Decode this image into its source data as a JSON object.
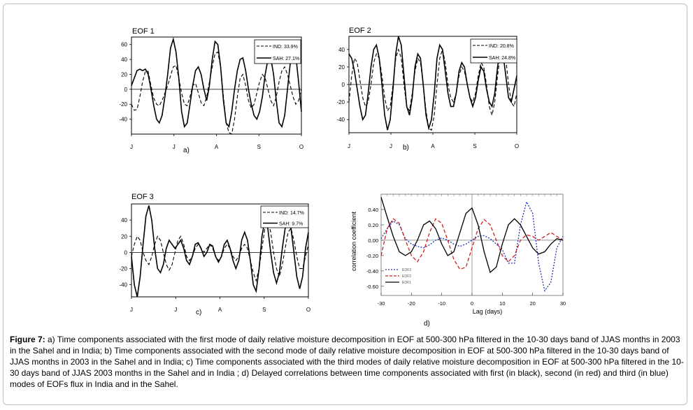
{
  "figure": {
    "caption_label": "Figure 7:",
    "caption_text": " a) Time components associated with the first mode of daily relative moisture decomposition in EOF at 500-300 hPa filtered in the 10-30 days band of JJAS months in 2003 in the Sahel and in India; b) Time components associated with the second mode of daily relative moisture decomposition in EOF at 500-300 hPa filtered in the 10-30 days band of JJAS months in 2003 in the Sahel and in India; c) Time components associated with the third modes of daily relative moisture decomposition in EOF at 500-300 hPa filtered in the 10-30 days band of JJAS 2003 months in the Sahel and in India ; d) Delayed correlations between time components associated with first (in black), second (in red) and third (in blue) modes of EOFs flux in India and in the Sahel."
  },
  "chart_data": [
    {
      "type": "line",
      "panel": "a)",
      "title": "EOF 1",
      "x_ticks": [
        "J",
        "J",
        "A",
        "S",
        "O"
      ],
      "y_ticks": [
        "60",
        "40",
        "20",
        "0",
        "-20",
        "-40"
      ],
      "ylim": [
        -60,
        70
      ],
      "legend": [
        "IND: 33.9%",
        "SAH: 27.1%"
      ],
      "series": [
        {
          "name": "IND: 33.9%",
          "style": "dashed",
          "values": [
            -20,
            -28,
            -27,
            -10,
            10,
            24,
            24,
            5,
            -12,
            -20,
            -22,
            -15,
            -5,
            5,
            18,
            30,
            32,
            15,
            -5,
            -20,
            -22,
            -10,
            5,
            8,
            -5,
            -18,
            -22,
            -10,
            10,
            30,
            48,
            50,
            30,
            -10,
            -45,
            -58,
            -60,
            -40,
            -10,
            15,
            20,
            5,
            -15,
            -25,
            -20,
            -5,
            10,
            20,
            15,
            0,
            -15,
            -22,
            -10,
            10,
            25,
            30,
            20,
            5,
            -10,
            -20,
            -15,
            0
          ]
        },
        {
          "name": "SAH: 27.1%",
          "style": "solid",
          "values": [
            5,
            15,
            25,
            27,
            25,
            27,
            20,
            0,
            -22,
            -40,
            -45,
            -35,
            -10,
            20,
            55,
            67,
            50,
            15,
            -30,
            -50,
            -45,
            -20,
            5,
            25,
            30,
            20,
            0,
            -15,
            5,
            40,
            64,
            60,
            30,
            -15,
            -45,
            -50,
            -30,
            0,
            25,
            40,
            42,
            25,
            0,
            -20,
            -35,
            -40,
            -30,
            -10,
            20,
            40,
            42,
            20,
            -15,
            -45,
            -50,
            -35,
            0,
            35,
            48,
            45,
            10,
            -30
          ]
        }
      ]
    },
    {
      "type": "line",
      "panel": "b)",
      "title": "EOF 2",
      "x_ticks": [
        "J",
        "J",
        "A",
        "S",
        "O"
      ],
      "y_ticks": [
        "40",
        "20",
        "0",
        "-20",
        "-40"
      ],
      "ylim": [
        -55,
        55
      ],
      "legend": [
        "IND: 20.8%",
        "SAH: 24.8%"
      ],
      "series": [
        {
          "name": "IND: 20.8%",
          "style": "dashed",
          "values": [
            -20,
            10,
            30,
            25,
            5,
            -15,
            -25,
            -20,
            0,
            25,
            35,
            30,
            10,
            -15,
            -30,
            -25,
            0,
            30,
            40,
            30,
            0,
            -25,
            -30,
            -10,
            15,
            30,
            25,
            0,
            -30,
            -50,
            -52,
            -35,
            0,
            30,
            40,
            25,
            0,
            -15,
            -20,
            -10,
            10,
            20,
            15,
            0,
            -15,
            -20,
            -10,
            10,
            25,
            20,
            0,
            -25,
            -35,
            -20,
            10,
            35,
            45,
            30,
            0,
            -20,
            -25,
            -10
          ]
        },
        {
          "name": "SAH: 24.8%",
          "style": "solid",
          "values": [
            35,
            30,
            15,
            -5,
            -25,
            -40,
            -35,
            -10,
            20,
            40,
            45,
            30,
            0,
            -35,
            -52,
            -40,
            -5,
            35,
            55,
            45,
            10,
            -25,
            -35,
            -15,
            20,
            35,
            30,
            0,
            -35,
            -50,
            -40,
            -10,
            30,
            45,
            40,
            15,
            -10,
            -25,
            -25,
            -10,
            15,
            25,
            20,
            0,
            -15,
            -25,
            -15,
            5,
            20,
            15,
            -5,
            -20,
            -25,
            -10,
            20,
            40,
            35,
            10,
            -15,
            -20,
            -5,
            10
          ]
        }
      ]
    },
    {
      "type": "line",
      "panel": "c)",
      "title": "EOF 3",
      "x_ticks": [
        "J",
        "J",
        "A",
        "S",
        "O"
      ],
      "y_ticks": [
        "40",
        "20",
        "0",
        "-20",
        "-40"
      ],
      "ylim": [
        -55,
        60
      ],
      "legend": [
        "IND: 14.7%",
        "SAH: 9.7%"
      ],
      "series": [
        {
          "name": "IND: 14.7%",
          "style": "dashed",
          "values": [
            -5,
            10,
            20,
            15,
            0,
            -10,
            -15,
            -5,
            10,
            20,
            15,
            0,
            -15,
            -22,
            -15,
            0,
            15,
            20,
            10,
            -5,
            -10,
            -5,
            5,
            10,
            5,
            0,
            5,
            10,
            5,
            -5,
            -10,
            -5,
            5,
            10,
            5,
            -5,
            -10,
            -5,
            5,
            10,
            5,
            -10,
            -25,
            -35,
            -20,
            5,
            30,
            40,
            25,
            0,
            -20,
            -30,
            -15,
            5,
            25,
            30,
            15,
            -5,
            -20,
            -20,
            -5,
            10
          ]
        },
        {
          "name": "SAH: 9.7%",
          "style": "solid",
          "values": [
            -5,
            -40,
            -55,
            -30,
            10,
            45,
            58,
            40,
            5,
            -20,
            -25,
            -15,
            5,
            15,
            10,
            5,
            10,
            15,
            5,
            -10,
            -15,
            -5,
            10,
            12,
            5,
            -5,
            0,
            10,
            8,
            -5,
            -12,
            -5,
            10,
            15,
            5,
            -10,
            -20,
            -10,
            15,
            25,
            15,
            -10,
            -40,
            -48,
            -20,
            20,
            40,
            30,
            0,
            -25,
            -38,
            -25,
            5,
            30,
            45,
            30,
            0,
            -30,
            -45,
            -30,
            5,
            25
          ]
        }
      ]
    },
    {
      "type": "line",
      "panel": "d)",
      "title": "",
      "xlabel": "Lag (days)",
      "ylabel": "correlation coefficient",
      "x_ticks": [
        "-30",
        "-20",
        "-10",
        "0",
        "10",
        "20",
        "30"
      ],
      "y_ticks": [
        "0.40",
        "0.20",
        "0.00",
        "-0.20",
        "-0.40",
        "-0.60"
      ],
      "xlim": [
        -30,
        30
      ],
      "ylim": [
        -0.72,
        0.6
      ],
      "legend": [
        "EOF3",
        "EOF2",
        "EOF1"
      ],
      "lags": [
        -30,
        -28,
        -26,
        -24,
        -22,
        -20,
        -18,
        -16,
        -14,
        -12,
        -10,
        -8,
        -6,
        -4,
        -2,
        0,
        2,
        4,
        6,
        8,
        10,
        12,
        14,
        16,
        18,
        20,
        22,
        24,
        26,
        28,
        30
      ],
      "series": [
        {
          "name": "EOF3",
          "color": "#2233bb",
          "style": "dotted",
          "values": [
            0.02,
            0.15,
            0.25,
            0.2,
            0.02,
            -0.05,
            -0.08,
            -0.1,
            -0.06,
            0.0,
            0.03,
            0.0,
            -0.05,
            -0.08,
            -0.05,
            0.0,
            0.05,
            0.06,
            0.02,
            -0.05,
            -0.12,
            -0.3,
            -0.3,
            0.2,
            0.5,
            0.35,
            -0.3,
            -0.66,
            -0.55,
            -0.1,
            0.05
          ]
        },
        {
          "name": "EOF2",
          "color": "#cc2222",
          "style": "dashed",
          "values": [
            -0.2,
            0.15,
            0.28,
            0.22,
            0.0,
            -0.2,
            -0.28,
            -0.15,
            0.1,
            0.28,
            0.22,
            0.0,
            -0.25,
            -0.38,
            -0.35,
            -0.1,
            0.15,
            0.27,
            0.2,
            0.0,
            -0.2,
            -0.28,
            -0.2,
            0.0,
            0.07,
            0.05,
            0.0,
            0.05,
            0.1,
            0.05,
            0.0
          ]
        },
        {
          "name": "EOF1",
          "color": "#000000",
          "style": "solid",
          "values": [
            0.56,
            0.3,
            0.05,
            -0.15,
            -0.2,
            -0.15,
            0.0,
            0.2,
            0.25,
            0.15,
            -0.05,
            -0.2,
            -0.15,
            0.1,
            0.35,
            0.42,
            0.2,
            -0.15,
            -0.42,
            -0.35,
            -0.05,
            0.2,
            0.28,
            0.2,
            0.05,
            -0.1,
            -0.18,
            -0.15,
            -0.05,
            0.02,
            0.0
          ]
        }
      ],
      "vertical_line_at": 0,
      "zero_line": true
    }
  ]
}
